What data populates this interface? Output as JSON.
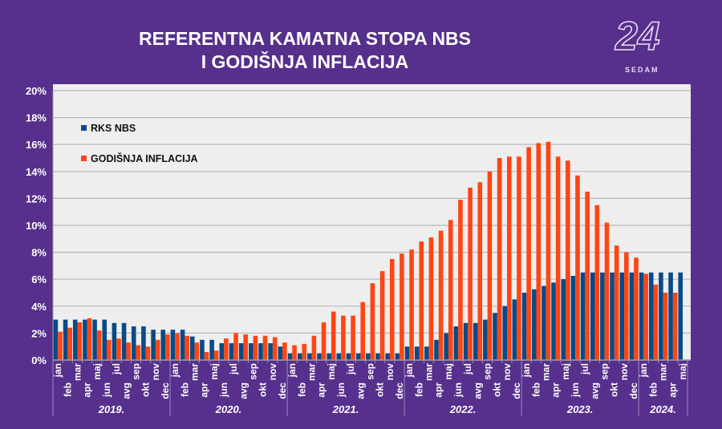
{
  "header": {
    "title_line1": "REFERENTNA KAMATNA STOPA NBS",
    "title_line2": "I GODIŠNJA INFLACIJA"
  },
  "logo": {
    "number": "24",
    "text": "SEDAM"
  },
  "colors": {
    "background": "#56308c",
    "plot_bg": "#eeeeee",
    "rks": "#0a4a86",
    "inflation": "#ff4514"
  },
  "chart_data": {
    "type": "bar",
    "ylim": [
      0,
      20
    ],
    "yticks": [
      "0%",
      "2%",
      "4%",
      "6%",
      "8%",
      "10%",
      "12%",
      "14%",
      "16%",
      "18%",
      "20%"
    ],
    "grid": true,
    "legend_placement": "top-left",
    "months": [
      "jan",
      "feb",
      "mar",
      "apr",
      "maj",
      "jun",
      "jul",
      "avg",
      "sep",
      "okt",
      "nov",
      "dec"
    ],
    "years": [
      {
        "label": "2019.",
        "months": 12
      },
      {
        "label": "2020.",
        "months": 12
      },
      {
        "label": "2021.",
        "months": 12
      },
      {
        "label": "2022.",
        "months": 12
      },
      {
        "label": "2023.",
        "months": 12
      },
      {
        "label": "2024.",
        "months": 5
      }
    ],
    "series": [
      {
        "name": "RKS NBS",
        "color": "#0a4a86",
        "values": [
          3,
          3,
          3,
          3,
          3,
          3,
          2.75,
          2.75,
          2.5,
          2.5,
          2.25,
          2.25,
          2.25,
          2.25,
          1.75,
          1.5,
          1.5,
          1.25,
          1.25,
          1.25,
          1.25,
          1.25,
          1.25,
          1.0,
          0.5,
          0.5,
          0.5,
          0.5,
          0.5,
          0.5,
          0.5,
          0.5,
          0.5,
          0.5,
          0.5,
          0.5,
          1.0,
          1.0,
          1.0,
          1.5,
          2.0,
          2.5,
          2.75,
          2.75,
          3.0,
          3.5,
          4.0,
          4.5,
          5.0,
          5.25,
          5.5,
          5.75,
          6.0,
          6.25,
          6.5,
          6.5,
          6.5,
          6.5,
          6.5,
          6.5,
          6.5,
          6.5,
          6.5,
          6.5,
          6.5
        ]
      },
      {
        "name": "GODIŠNJA INFLACIJA",
        "color": "#ff4514",
        "values": [
          2.1,
          2.4,
          2.8,
          3.1,
          2.2,
          1.5,
          1.6,
          1.3,
          1.1,
          1.0,
          1.5,
          1.9,
          2.0,
          1.8,
          1.3,
          0.6,
          0.7,
          1.6,
          2.0,
          1.9,
          1.8,
          1.8,
          1.7,
          1.3,
          1.1,
          1.2,
          1.8,
          2.8,
          3.6,
          3.3,
          3.3,
          4.3,
          5.7,
          6.6,
          7.5,
          7.9,
          8.2,
          8.8,
          9.1,
          9.6,
          10.4,
          11.9,
          12.8,
          13.2,
          14.0,
          15.0,
          15.1,
          15.1,
          15.8,
          16.1,
          16.2,
          15.1,
          14.8,
          13.7,
          12.5,
          11.5,
          10.2,
          8.5,
          8.0,
          7.6,
          6.4,
          5.6,
          5.0,
          5.0,
          null
        ]
      }
    ]
  }
}
